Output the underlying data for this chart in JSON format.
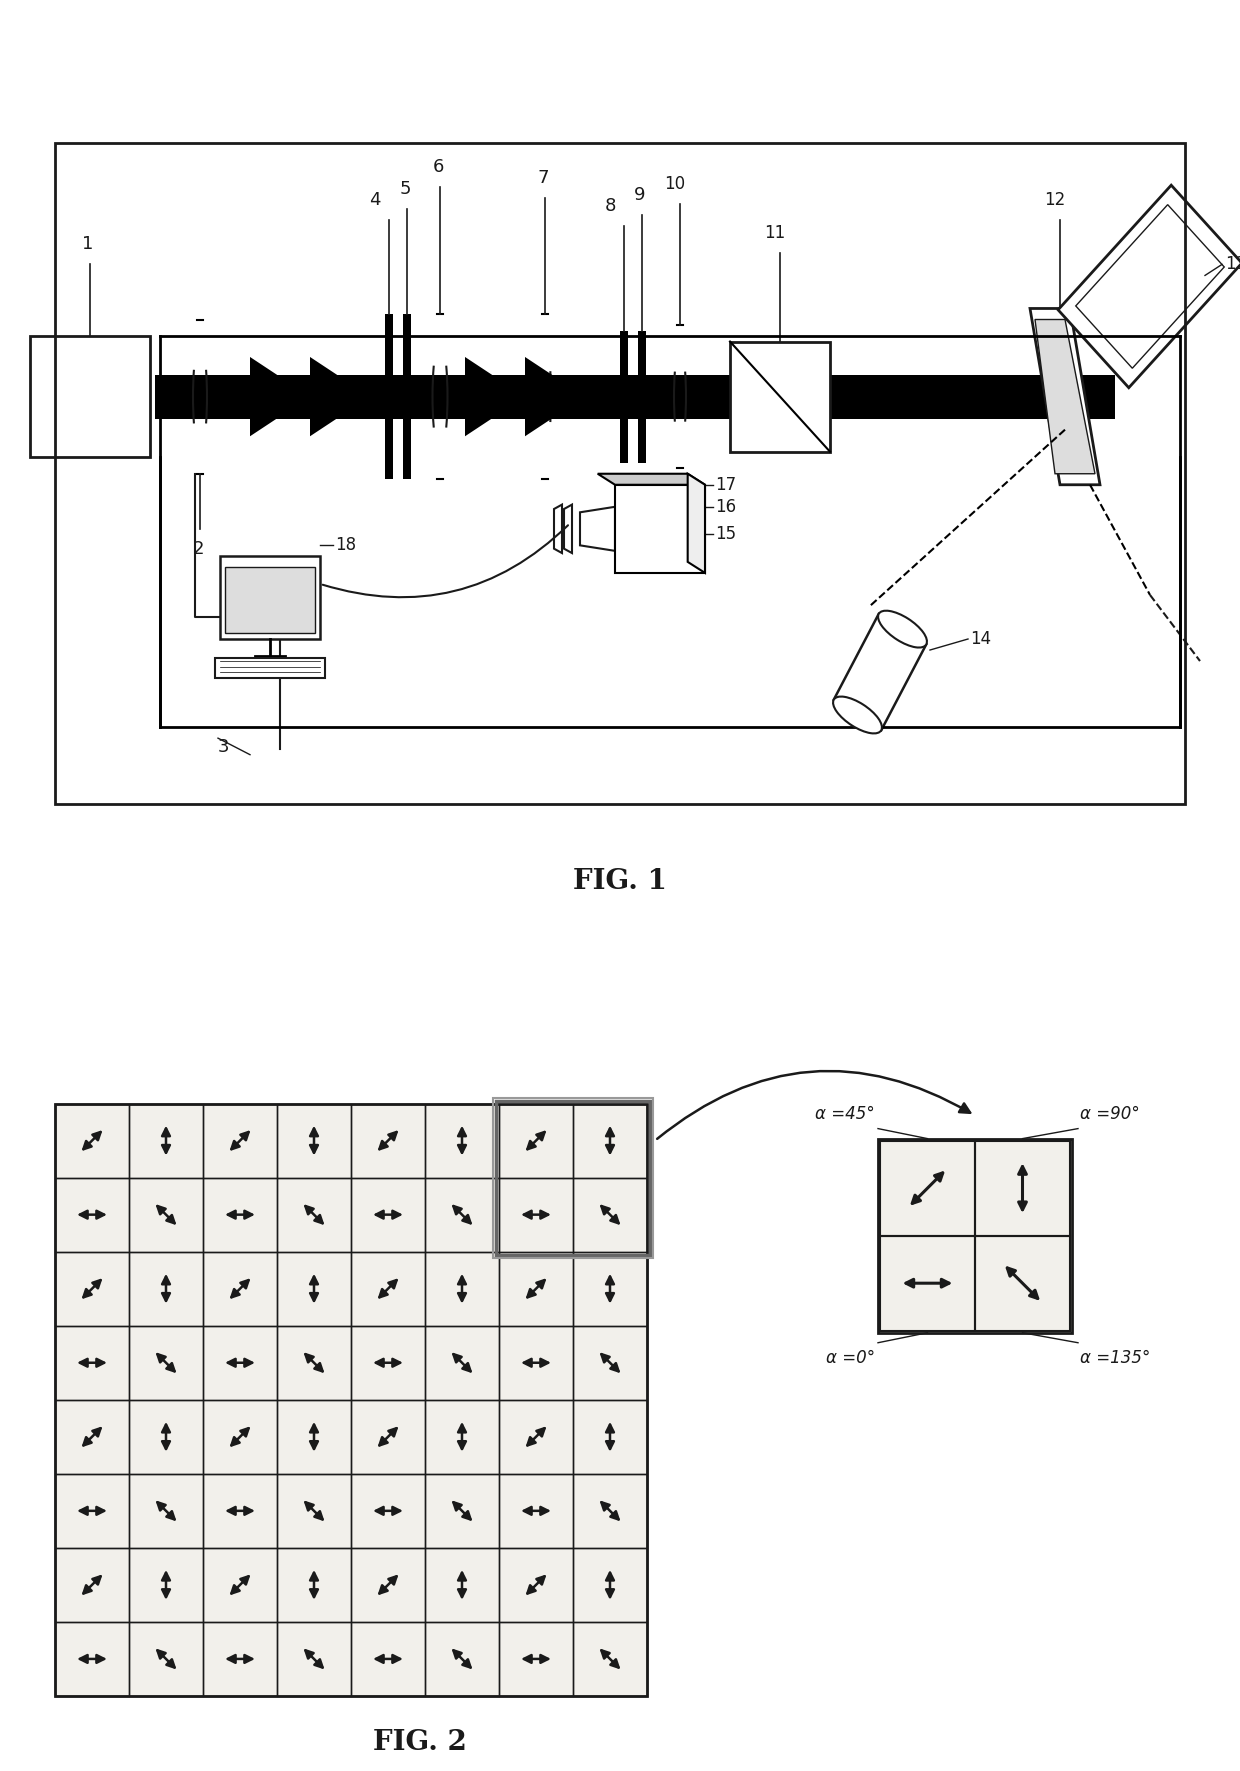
{
  "fig1_title": "FIG. 1",
  "fig2_title": "FIG. 2",
  "background": "#ffffff",
  "black": "#1a1a1a",
  "grid_rows": 8,
  "grid_cols": 8,
  "alpha_labels": [
    "α =45°",
    "α =90°",
    "α =0°",
    "α =135°"
  ],
  "arrow_angles_deg": [
    45,
    90,
    45,
    90,
    45,
    90,
    45,
    90,
    0,
    135,
    0,
    135,
    0,
    135,
    0,
    135,
    45,
    90,
    45,
    90,
    45,
    90,
    45,
    90,
    0,
    135,
    0,
    135,
    0,
    135,
    0,
    135,
    45,
    90,
    45,
    90,
    45,
    90,
    45,
    90,
    0,
    135,
    0,
    135,
    0,
    135,
    0,
    135,
    45,
    90,
    45,
    90,
    45,
    90,
    45,
    90,
    0,
    135,
    0,
    135,
    0,
    135,
    0,
    135
  ]
}
